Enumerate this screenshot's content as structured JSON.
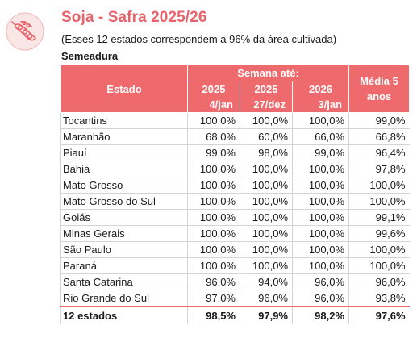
{
  "header": {
    "title": "Soja - Safra 2025/26",
    "note": "(Esses 12 estados correspondem a 96% da área cultivada)",
    "section": "Semeadura",
    "logo_icon": "soybean-pod-icon"
  },
  "colors": {
    "accent": "#e8636b",
    "header_bg": "#ef6a6d"
  },
  "table": {
    "col_estado": "Estado",
    "col_group": "Semana até:",
    "col_media": "Média 5 anos",
    "years": [
      "2025",
      "2025",
      "2026"
    ],
    "dates": [
      "4/jan",
      "27/dez",
      "3/jan"
    ],
    "rows": [
      [
        "Tocantins",
        "100,0%",
        "100,0%",
        "100,0%",
        "99,0%"
      ],
      [
        "Maranhão",
        "68,0%",
        "60,0%",
        "66,0%",
        "66,8%"
      ],
      [
        "Piauí",
        "99,0%",
        "98,0%",
        "99,0%",
        "96,4%"
      ],
      [
        "Bahia",
        "100,0%",
        "100,0%",
        "100,0%",
        "97,8%"
      ],
      [
        "Mato Grosso",
        "100,0%",
        "100,0%",
        "100,0%",
        "100,0%"
      ],
      [
        "Mato Grosso do Sul",
        "100,0%",
        "100,0%",
        "100,0%",
        "100,0%"
      ],
      [
        "Goiás",
        "100,0%",
        "100,0%",
        "100,0%",
        "99,1%"
      ],
      [
        "Minas Gerais",
        "100,0%",
        "100,0%",
        "100,0%",
        "99,6%"
      ],
      [
        "São Paulo",
        "100,0%",
        "100,0%",
        "100,0%",
        "100,0%"
      ],
      [
        "Paraná",
        "100,0%",
        "100,0%",
        "100,0%",
        "100,0%"
      ],
      [
        "Santa Catarina",
        "96,0%",
        "94,0%",
        "96,0%",
        "96,0%"
      ],
      [
        "Rio Grande do Sul",
        "97,0%",
        "96,0%",
        "96,0%",
        "93,8%"
      ]
    ],
    "total": [
      "12 estados",
      "98,5%",
      "97,9%",
      "98,2%",
      "97,6%"
    ]
  }
}
